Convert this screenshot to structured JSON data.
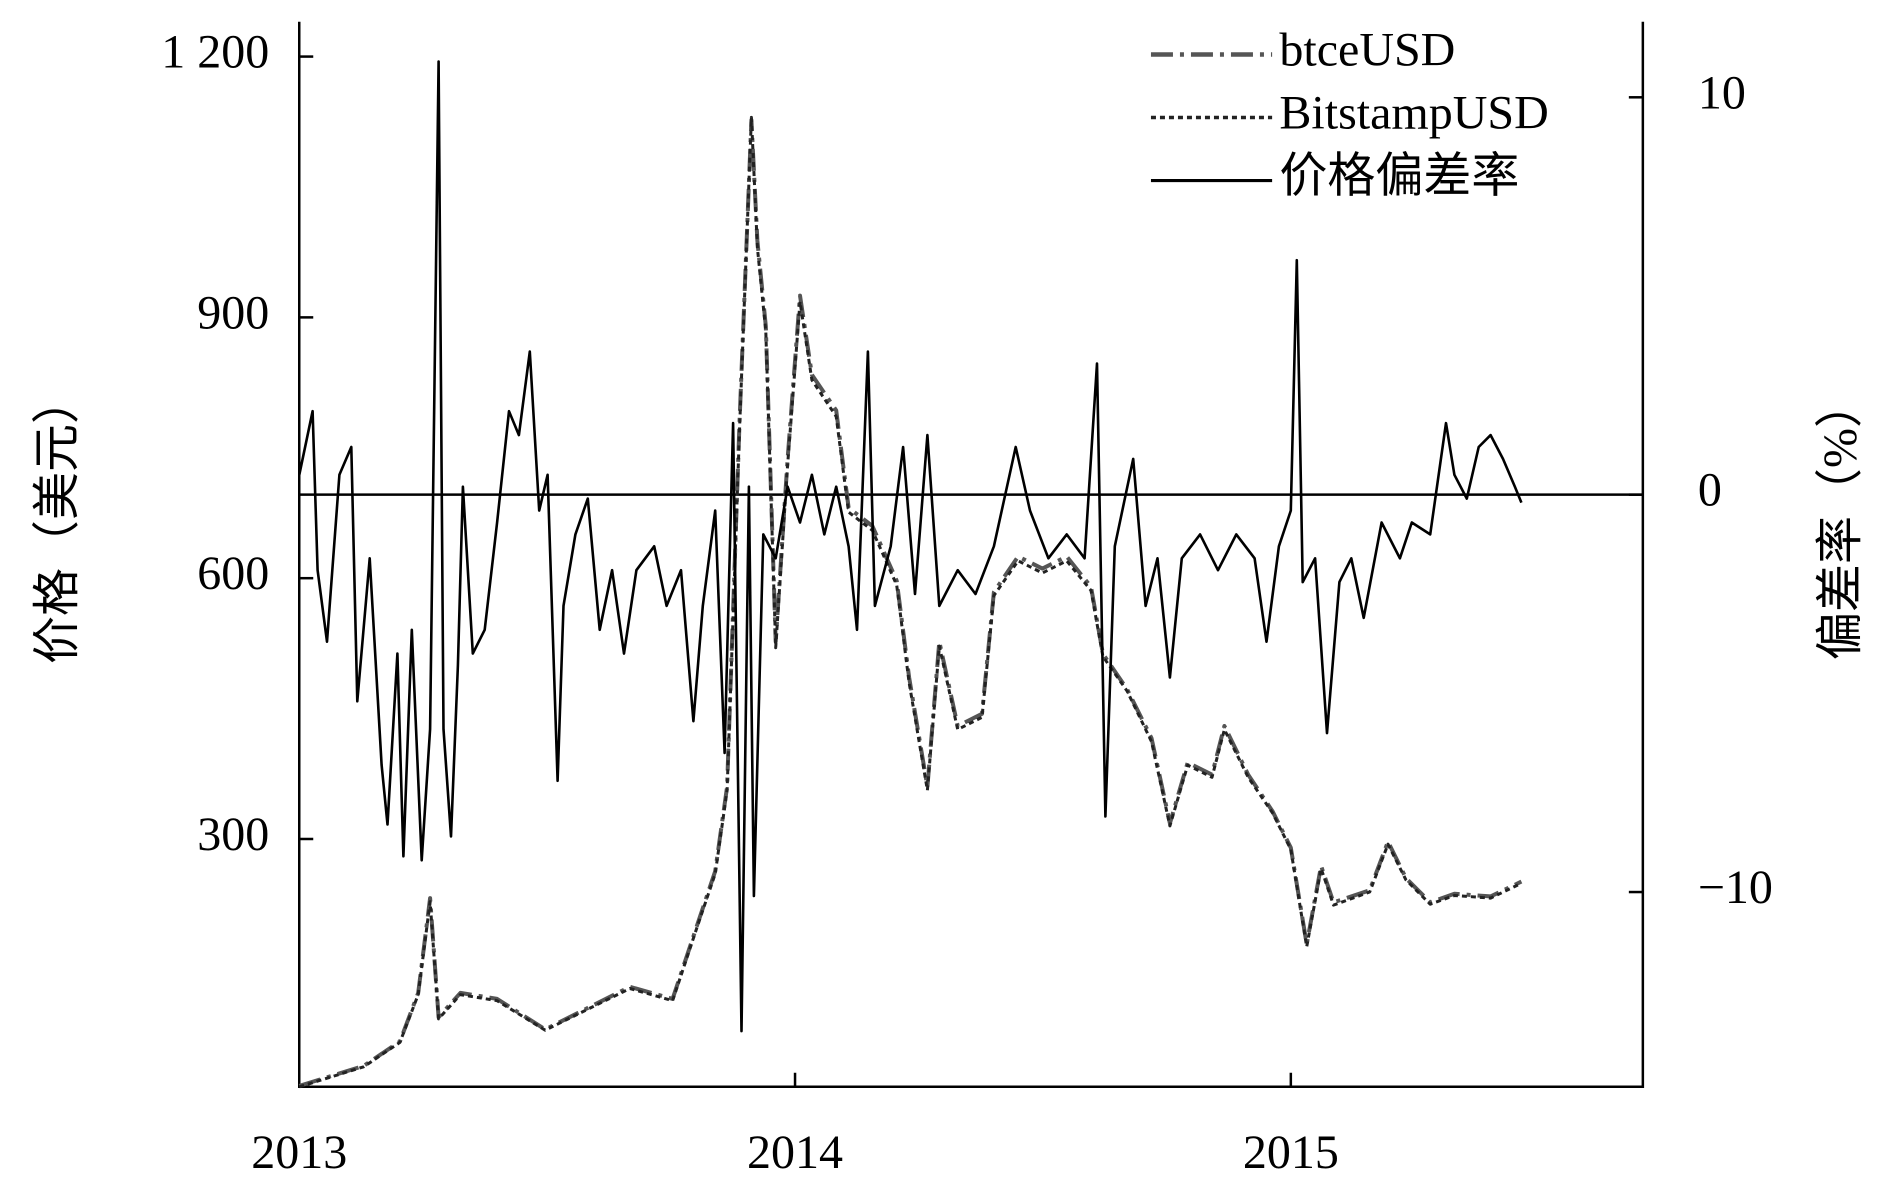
{
  "chart_data": {
    "type": "line",
    "ylabel": "价格（美元）",
    "y2label": "偏差率（%）",
    "xlim": [
      2013,
      2015.71
    ],
    "xticks": [
      2013,
      2014,
      2015
    ],
    "ylim": [
      15,
      1240
    ],
    "yticks": [
      300,
      600,
      900,
      {
        "value": 1200,
        "label": "1 200"
      }
    ],
    "y2lim": [
      -14.9,
      11.9
    ],
    "y2ticks": [
      {
        "value": -10,
        "label": "−10"
      },
      0,
      10
    ],
    "legend": "upper right",
    "series": [
      {
        "name": "btceUSD",
        "color": "#555555",
        "style": "dashdot",
        "x": [
          2013,
          2013.13,
          2013.203,
          2013.24,
          2013.264,
          2013.281,
          2013.325,
          2013.399,
          2013.496,
          2013.667,
          2013.753,
          2013.802,
          2013.839,
          2013.863,
          2013.888,
          2013.912,
          2013.924,
          2013.941,
          2013.961,
          2013.985,
          2014.01,
          2014.034,
          2014.083,
          2014.108,
          2014.156,
          2014.205,
          2014.23,
          2014.267,
          2014.291,
          2014.328,
          2014.377,
          2014.401,
          2014.45,
          2014.499,
          2014.548,
          2014.597,
          2014.621,
          2014.67,
          2014.719,
          2014.756,
          2014.792,
          2014.841,
          2014.866,
          2014.914,
          2014.963,
          2015,
          2015.032,
          2015.061,
          2015.086,
          2015.159,
          2015.196,
          2015.232,
          2015.281,
          2015.33,
          2015.403,
          2015.465
        ],
        "values": [
          16,
          39,
          67,
          123,
          232,
          95,
          123,
          116,
          81,
          130,
          116,
          200,
          263,
          360,
          779,
          1127,
          988,
          890,
          527,
          737,
          925,
          834,
          793,
          681,
          660,
          597,
          486,
          360,
          527,
          430,
          444,
          584,
          625,
          611,
          625,
          590,
          513,
          472,
          416,
          318,
          388,
          374,
          430,
          374,
          332,
          290,
          179,
          269,
          227,
          241,
          297,
          255,
          227,
          237,
          234,
          251
        ]
      },
      {
        "name": "BitstampUSD",
        "color": "#222222",
        "style": "dotted",
        "x": [
          2013,
          2013.13,
          2013.203,
          2013.24,
          2013.264,
          2013.281,
          2013.325,
          2013.399,
          2013.496,
          2013.667,
          2013.753,
          2013.802,
          2013.839,
          2013.863,
          2013.888,
          2013.912,
          2013.924,
          2013.941,
          2013.961,
          2013.985,
          2014.01,
          2014.034,
          2014.083,
          2014.108,
          2014.156,
          2014.205,
          2014.23,
          2014.267,
          2014.291,
          2014.328,
          2014.377,
          2014.401,
          2014.45,
          2014.499,
          2014.548,
          2014.597,
          2014.621,
          2014.67,
          2014.719,
          2014.756,
          2014.792,
          2014.841,
          2014.866,
          2014.914,
          2014.963,
          2015,
          2015.032,
          2015.061,
          2015.086,
          2015.159,
          2015.196,
          2015.232,
          2015.281,
          2015.33,
          2015.403,
          2015.465
        ],
        "values": [
          15,
          38,
          66,
          121,
          228,
          93,
          121,
          114,
          80,
          128,
          114,
          198,
          260,
          356,
          770,
          1130,
          980,
          884,
          520,
          730,
          918,
          828,
          786,
          676,
          655,
          592,
          480,
          356,
          522,
          426,
          440,
          580,
          620,
          606,
          620,
          586,
          510,
          470,
          412,
          315,
          385,
          371,
          426,
          371,
          330,
          288,
          176,
          266,
          224,
          239,
          294,
          253,
          225,
          235,
          232,
          249
        ]
      },
      {
        "name": "价格偏差率",
        "color": "#000000",
        "style": "solid",
        "axis": "y2",
        "x": [
          2013,
          2013.027,
          2013.037,
          2013.056,
          2013.081,
          2013.105,
          2013.117,
          2013.142,
          2013.166,
          2013.178,
          2013.198,
          2013.21,
          2013.227,
          2013.247,
          2013.264,
          2013.281,
          2013.291,
          2013.306,
          2013.32,
          2013.33,
          2013.35,
          2013.374,
          2013.399,
          2013.423,
          2013.443,
          2013.465,
          2013.484,
          2013.501,
          2013.521,
          2013.533,
          2013.557,
          2013.582,
          2013.606,
          2013.631,
          2013.655,
          2013.68,
          2013.716,
          2013.741,
          2013.77,
          2013.795,
          2013.814,
          2013.839,
          2013.858,
          2013.875,
          2013.892,
          2013.907,
          2013.917,
          2013.936,
          2013.961,
          2013.985,
          2014.01,
          2014.034,
          2014.059,
          2014.083,
          2014.108,
          2014.125,
          2014.147,
          2014.161,
          2014.193,
          2014.218,
          2014.242,
          2014.267,
          2014.291,
          2014.328,
          2014.364,
          2014.401,
          2014.445,
          2014.474,
          2014.511,
          2014.548,
          2014.584,
          2014.609,
          2014.626,
          2014.645,
          2014.682,
          2014.707,
          2014.731,
          2014.756,
          2014.78,
          2014.817,
          2014.853,
          2014.89,
          2014.927,
          2014.951,
          2014.976,
          2015,
          2015.012,
          2015.024,
          2015.049,
          2015.073,
          2015.098,
          2015.122,
          2015.147,
          2015.183,
          2015.22,
          2015.244,
          2015.281,
          2015.313,
          2015.33,
          2015.355,
          2015.379,
          2015.403,
          2015.428,
          2015.452,
          2015.465
        ],
        "values": [
          0.5,
          2.1,
          -1.9,
          -3.7,
          0.5,
          1.2,
          -5.2,
          -1.6,
          -6.8,
          -8.3,
          -4.0,
          -9.1,
          -3.4,
          -9.2,
          -5.9,
          10.9,
          -5.9,
          -8.6,
          -4.3,
          0.2,
          -4.0,
          -3.4,
          -0.7,
          2.1,
          1.5,
          3.6,
          -0.4,
          0.5,
          -7.2,
          -2.8,
          -1.0,
          -0.1,
          -3.4,
          -1.9,
          -4.0,
          -1.9,
          -1.3,
          -2.8,
          -1.9,
          -5.7,
          -2.8,
          -0.4,
          -6.5,
          1.8,
          -13.5,
          0.2,
          -10.1,
          -1.0,
          -1.6,
          0.2,
          -0.7,
          0.5,
          -1.0,
          0.2,
          -1.3,
          -3.4,
          3.6,
          -2.8,
          -1.3,
          1.2,
          -2.5,
          1.5,
          -2.8,
          -1.9,
          -2.5,
          -1.3,
          1.2,
          -0.4,
          -1.6,
          -1.0,
          -1.6,
          3.3,
          -8.1,
          -1.3,
          0.9,
          -2.8,
          -1.6,
          -4.6,
          -1.6,
          -1.0,
          -1.9,
          -1.0,
          -1.6,
          -3.7,
          -1.3,
          -0.4,
          5.9,
          -2.2,
          -1.6,
          -6.0,
          -2.2,
          -1.6,
          -3.1,
          -0.7,
          -1.6,
          -0.7,
          -1.0,
          1.8,
          0.5,
          -0.1,
          1.2,
          1.5,
          0.9,
          0.2,
          -0.2
        ]
      }
    ]
  }
}
